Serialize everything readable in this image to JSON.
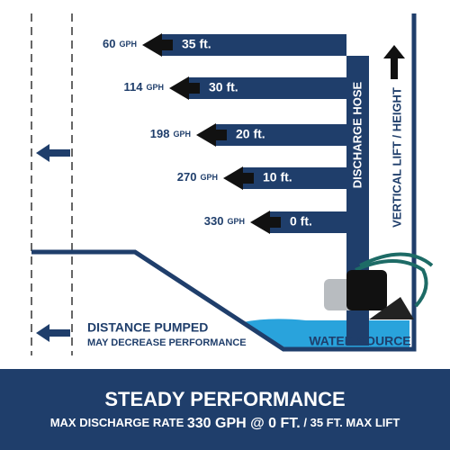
{
  "levels": [
    {
      "rate": "60",
      "unit": "GPH",
      "height": "35 ft."
    },
    {
      "rate": "114",
      "unit": "GPH",
      "height": "30 ft."
    },
    {
      "rate": "198",
      "unit": "GPH",
      "height": "20 ft."
    },
    {
      "rate": "270",
      "unit": "GPH",
      "height": "10 ft."
    },
    {
      "rate": "330",
      "unit": "GPH",
      "height": "0 ft."
    }
  ],
  "hose_label": "DISCHARGE HOSE",
  "lift_label": "VERTICAL LIFT / HEIGHT",
  "water_label": "WATER SOURCE",
  "distance_note": {
    "line1": "DISTANCE PUMPED",
    "line2": "MAY DECREASE PERFORMANCE"
  },
  "footer": {
    "title": "STEADY PERFORMANCE",
    "subtitle_a": "MAX DISCHARGE RATE",
    "subtitle_b": "330 GPH @ 0 FT.",
    "subtitle_c": "/ 35 FT. MAX LIFT"
  }
}
